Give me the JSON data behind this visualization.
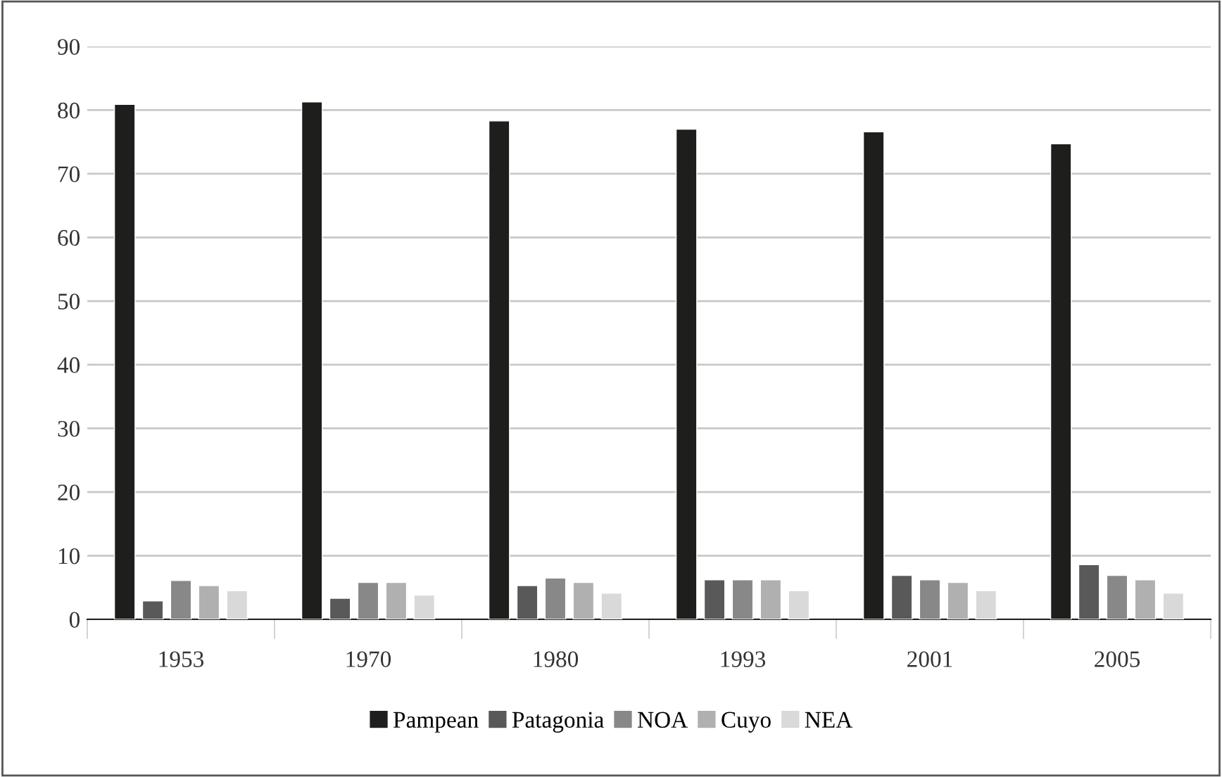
{
  "chart_data": {
    "type": "bar",
    "categories": [
      "1953",
      "1970",
      "1980",
      "1993",
      "2001",
      "2005"
    ],
    "series": [
      {
        "name": "Pampean",
        "color": "#1e1e1c",
        "values": [
          80.9,
          81.3,
          78.3,
          77.0,
          76.6,
          74.7
        ]
      },
      {
        "name": "Patagonia",
        "color": "#595959",
        "values": [
          2.9,
          3.3,
          5.3,
          6.2,
          6.9,
          8.6
        ]
      },
      {
        "name": "NOA",
        "color": "#888888",
        "values": [
          6.1,
          5.8,
          6.5,
          6.2,
          6.2,
          6.9
        ]
      },
      {
        "name": "Cuyo",
        "color": "#b0b0b0",
        "values": [
          5.3,
          5.8,
          5.8,
          6.2,
          5.8,
          6.2
        ]
      },
      {
        "name": "NEA",
        "color": "#d9d9d9",
        "values": [
          4.5,
          3.8,
          4.1,
          4.5,
          4.5,
          4.1
        ]
      }
    ],
    "ylim": [
      0,
      90
    ],
    "yticks": [
      0,
      10,
      20,
      30,
      40,
      50,
      60,
      70,
      80,
      90
    ],
    "grid": "y",
    "legend": "bottom"
  }
}
